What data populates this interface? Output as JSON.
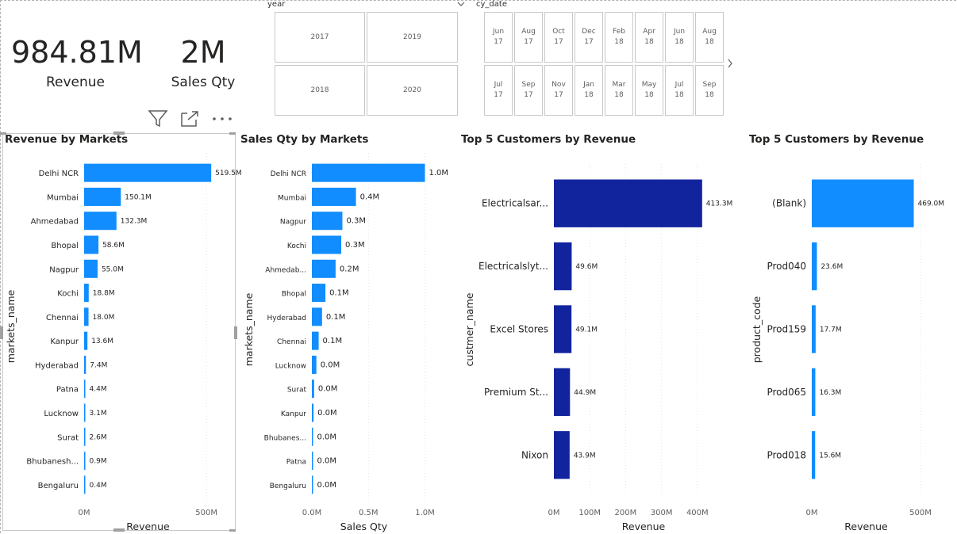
{
  "kpis": [
    {
      "value": "984.81M",
      "label": "Revenue"
    },
    {
      "value": "2M",
      "label": "Sales Qty"
    }
  ],
  "slicers": {
    "year": {
      "title": "year",
      "options": [
        "2017",
        "2019",
        "2018",
        "2020"
      ]
    },
    "cy_date": {
      "title": "cy_date",
      "options": [
        "Jun\n17",
        "Aug\n17",
        "Oct\n17",
        "Dec\n17",
        "Feb\n18",
        "Apr\n18",
        "Jun\n18",
        "Aug\n18",
        "Jul\n17",
        "Sep\n17",
        "Nov\n17",
        "Jan\n18",
        "Mar\n18",
        "May\n18",
        "Jul\n18",
        "Sep\n18"
      ]
    }
  },
  "colors": {
    "accent": "#118DFF",
    "dark": "#12239E"
  },
  "chart_data": [
    {
      "type": "bar",
      "orientation": "horizontal",
      "title": "Revenue by Markets",
      "xlabel": "Revenue",
      "ylabel": "markets_name",
      "categories": [
        "Delhi NCR",
        "Mumbai",
        "Ahmedabad",
        "Bhopal",
        "Nagpur",
        "Kochi",
        "Chennai",
        "Kanpur",
        "Hyderabad",
        "Patna",
        "Lucknow",
        "Surat",
        "Bhubanesh...",
        "Bengaluru"
      ],
      "values": [
        519.5,
        150.1,
        132.3,
        58.6,
        55.0,
        18.8,
        18.0,
        13.6,
        7.4,
        4.4,
        3.1,
        2.6,
        0.9,
        0.4
      ],
      "data_labels": [
        "519.5M",
        "150.1M",
        "132.3M",
        "58.6M",
        "55.0M",
        "18.8M",
        "18.0M",
        "13.6M",
        "7.4M",
        "4.4M",
        "3.1M",
        "2.6M",
        "0.9M",
        "0.4M"
      ],
      "xticks": [
        "0M",
        "500M"
      ],
      "xtick_values": [
        0,
        500
      ],
      "xlim": [
        0,
        600
      ],
      "color": "#118DFF"
    },
    {
      "type": "bar",
      "orientation": "horizontal",
      "title": "Sales Qty by Markets",
      "xlabel": "Sales Qty",
      "ylabel": "markets_name",
      "categories": [
        "Delhi NCR",
        "Mumbai",
        "Nagpur",
        "Kochi",
        "Ahmedab...",
        "Bhopal",
        "Hyderabad",
        "Chennai",
        "Lucknow",
        "Surat",
        "Kanpur",
        "Bhubanes...",
        "Patna",
        "Bengaluru"
      ],
      "values": [
        1.0,
        0.39,
        0.27,
        0.26,
        0.21,
        0.12,
        0.09,
        0.06,
        0.04,
        0.02,
        0.015,
        0.01,
        0.01,
        0.005
      ],
      "data_labels": [
        "1.0M",
        "0.4M",
        "0.3M",
        "0.3M",
        "0.2M",
        "0.1M",
        "0.1M",
        "0.1M",
        "0.0M",
        "0.0M",
        "0.0M",
        "0.0M",
        "0.0M",
        "0.0M"
      ],
      "xticks": [
        "0.0M",
        "0.5M",
        "1.0M"
      ],
      "xtick_values": [
        0,
        0.5,
        1.0
      ],
      "xlim": [
        0,
        1.2
      ],
      "color": "#118DFF"
    },
    {
      "type": "bar",
      "orientation": "horizontal",
      "title": "Top 5 Customers by Revenue",
      "xlabel": "Revenue",
      "ylabel": "custmer_name",
      "categories": [
        "Electricalsar...",
        "Electricalslyt...",
        "Excel Stores",
        "Premium St...",
        "Nixon"
      ],
      "values": [
        413.3,
        49.6,
        49.1,
        44.9,
        43.9
      ],
      "data_labels": [
        "413.3M",
        "49.6M",
        "49.1M",
        "44.9M",
        "43.9M"
      ],
      "xticks": [
        "0M",
        "100M",
        "200M",
        "300M",
        "400M"
      ],
      "xtick_values": [
        0,
        100,
        200,
        300,
        400
      ],
      "xlim": [
        0,
        500
      ],
      "color": "#12239E"
    },
    {
      "type": "bar",
      "orientation": "horizontal",
      "title": "Top 5 Customers by Revenue",
      "xlabel": "Revenue",
      "ylabel": "product_code",
      "categories": [
        "(Blank)",
        "Prod040",
        "Prod159",
        "Prod065",
        "Prod018"
      ],
      "values": [
        469.0,
        23.6,
        17.7,
        16.3,
        15.6
      ],
      "data_labels": [
        "469.0M",
        "23.6M",
        "17.7M",
        "16.3M",
        "15.6M"
      ],
      "xticks": [
        "0M",
        "500M"
      ],
      "xtick_values": [
        0,
        500
      ],
      "xlim": [
        0,
        500
      ],
      "color": "#118DFF"
    }
  ]
}
